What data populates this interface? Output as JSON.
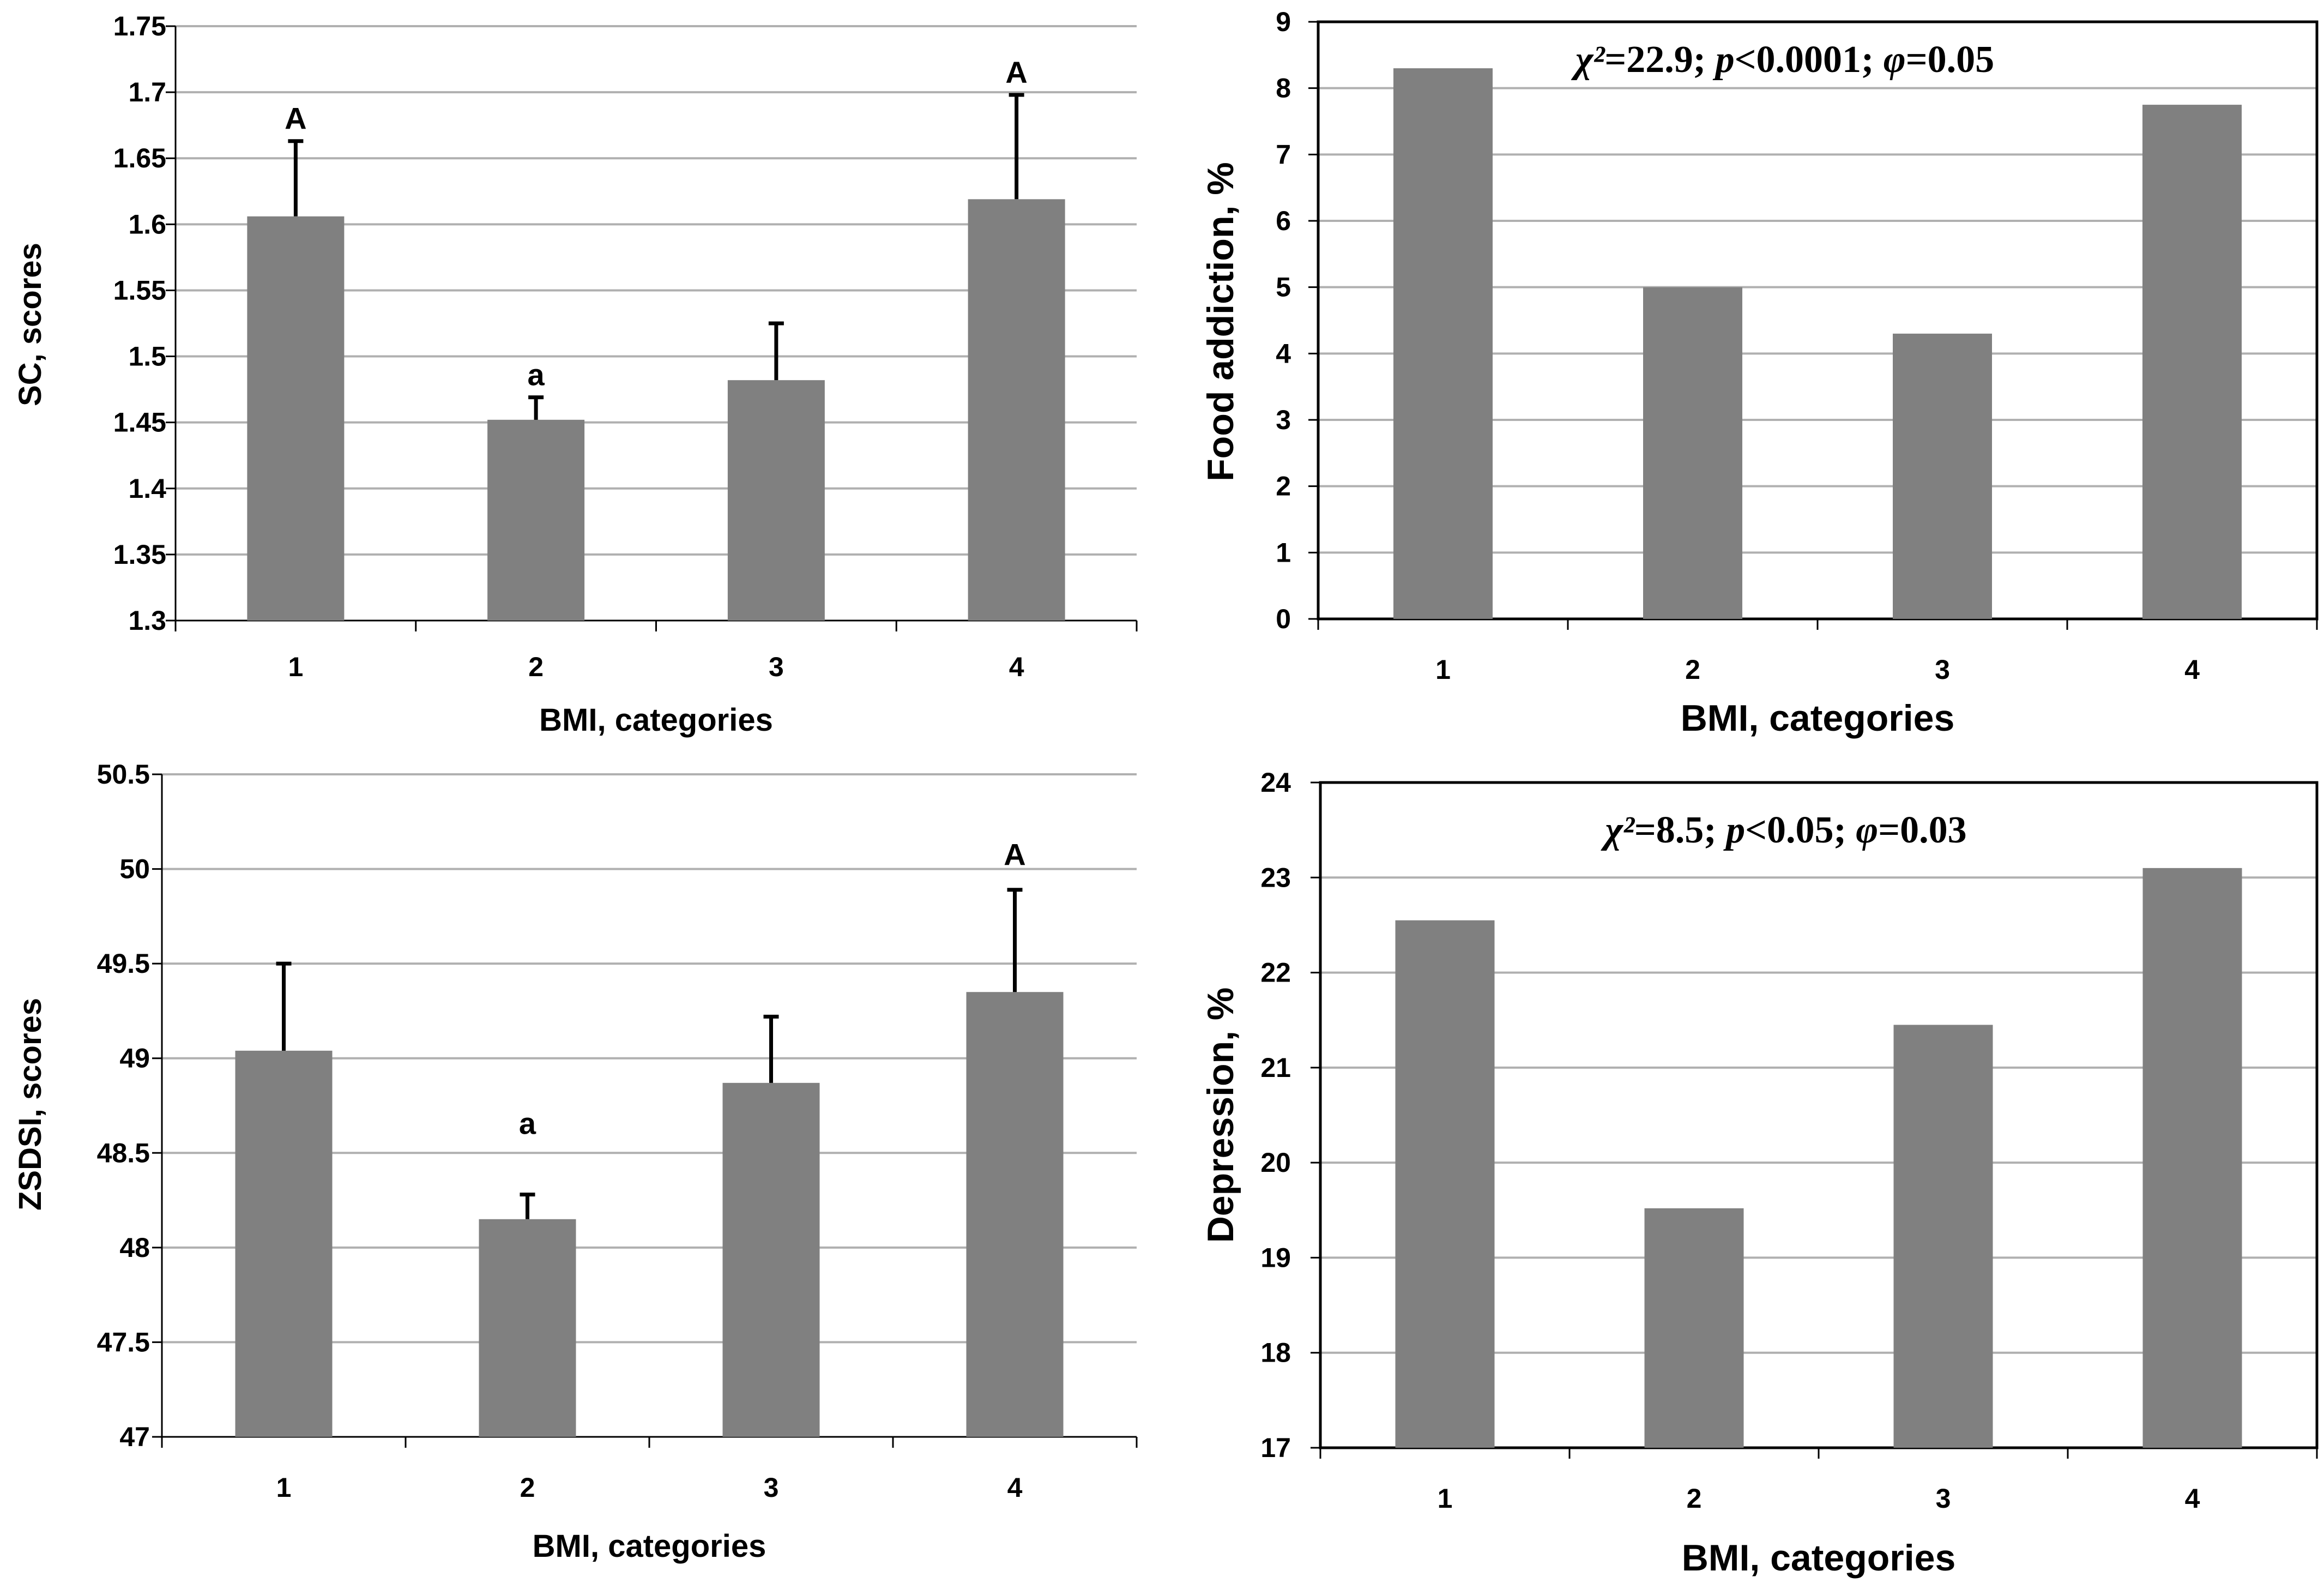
{
  "figure_colors": {
    "bar": "#808080",
    "grid": "#b0b0b0",
    "axis": "#000000"
  },
  "chart_data": [
    {
      "id": "sc",
      "type": "bar",
      "categories": [
        "1",
        "2",
        "3",
        "4"
      ],
      "values": [
        1.606,
        1.452,
        1.482,
        1.619
      ],
      "error_upper": [
        1.663,
        1.469,
        1.525,
        1.698
      ],
      "annotations": [
        "A",
        "a",
        "",
        "A"
      ],
      "title": "",
      "xlabel": "BMI, categories",
      "ylabel": "SC, scores",
      "ylim": [
        1.3,
        1.75
      ],
      "yticks": [
        "1.3",
        "1.35",
        "1.4",
        "1.45",
        "1.5",
        "1.55",
        "1.6",
        "1.65",
        "1.7",
        "1.75"
      ],
      "grid": true,
      "stats_text": null
    },
    {
      "id": "food",
      "type": "bar",
      "categories": [
        "1",
        "2",
        "3",
        "4"
      ],
      "values": [
        8.3,
        5.0,
        4.3,
        7.75
      ],
      "title": "",
      "xlabel": "BMI, categories",
      "ylabel": "Food addiction, %",
      "ylim": [
        0,
        9
      ],
      "yticks": [
        "0",
        "1",
        "2",
        "3",
        "4",
        "5",
        "6",
        "7",
        "8",
        "9"
      ],
      "grid": true,
      "stats_text": {
        "chi_symbol": "χ²",
        "chi_value": "=22.9; ",
        "p_symbol": "p",
        "p_value": "<0.0001; ",
        "phi_symbol": "φ",
        "phi_value": "=0.05"
      }
    },
    {
      "id": "zsdsi",
      "type": "bar",
      "categories": [
        "1",
        "2",
        "3",
        "4"
      ],
      "values": [
        49.04,
        48.15,
        48.87,
        49.35
      ],
      "error_upper": [
        49.5,
        48.28,
        49.22,
        49.89
      ],
      "annotations": [
        "",
        "a",
        "",
        "A"
      ],
      "annotation_y": [
        null,
        48.6,
        null,
        50.02
      ],
      "title": "",
      "xlabel": "BMI, categories",
      "ylabel": "ZSDSI, scores",
      "ylim": [
        47,
        50.5
      ],
      "yticks": [
        "47",
        "47.5",
        "48",
        "48.5",
        "49",
        "49.5",
        "50",
        "50.5"
      ],
      "grid": true,
      "stats_text": null
    },
    {
      "id": "depression",
      "type": "bar",
      "categories": [
        "1",
        "2",
        "3",
        "4"
      ],
      "values": [
        22.55,
        19.52,
        21.45,
        23.1
      ],
      "title": "",
      "xlabel": "BMI, categories",
      "ylabel": "Depression, %",
      "ylim": [
        17,
        24
      ],
      "yticks": [
        "17",
        "18",
        "19",
        "20",
        "21",
        "22",
        "23",
        "24"
      ],
      "grid": true,
      "stats_text": {
        "chi_symbol": "χ²",
        "chi_value": "=8.5; ",
        "p_symbol": "p",
        "p_value": "<0.05; ",
        "phi_symbol": "φ",
        "phi_value": "=0.03"
      }
    }
  ]
}
